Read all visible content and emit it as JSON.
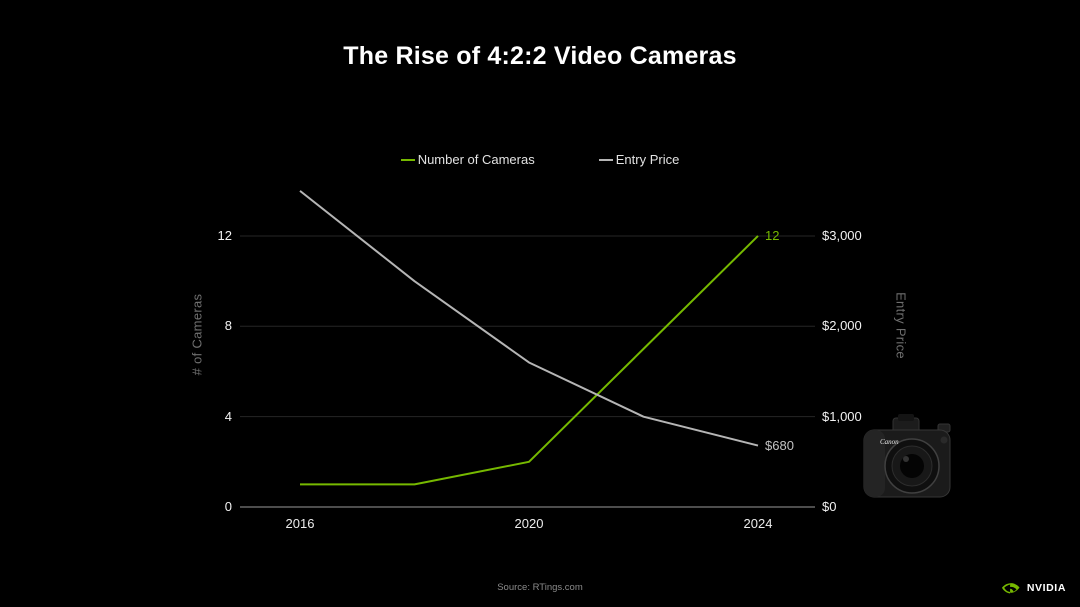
{
  "title": "The Rise of 4:2:2 Video Cameras",
  "colors": {
    "background": "#000000",
    "accent_green": "#76b900",
    "line_gray": "#b5b5b5",
    "gridline": "#262626",
    "axis_line": "#9a9a9a"
  },
  "legend": {
    "items": [
      {
        "label": "Number of Cameras",
        "color": "#76b900"
      },
      {
        "label": "Entry Price",
        "color": "#b5b5b5"
      }
    ]
  },
  "chart_data": {
    "type": "line",
    "x": [
      2016,
      2018,
      2020,
      2022,
      2024
    ],
    "series": [
      {
        "name": "Number of Cameras",
        "axis": "left",
        "color": "#76b900",
        "values": [
          1,
          1,
          2,
          7,
          12
        ]
      },
      {
        "name": "Entry Price",
        "axis": "right",
        "color": "#b5b5b5",
        "values": [
          3500,
          2500,
          1600,
          1000,
          680
        ]
      }
    ],
    "x_axis": {
      "ticks": [
        2016,
        2020,
        2024
      ],
      "tick_labels": [
        "2016",
        "2020",
        "2024"
      ],
      "range": [
        2016,
        2024
      ]
    },
    "left_axis": {
      "label": "# of Cameras",
      "ticks": [
        0,
        4,
        8,
        12
      ],
      "tick_labels": [
        "0",
        "4",
        "8",
        "12"
      ],
      "range": [
        0,
        14.92
      ]
    },
    "right_axis": {
      "label": "Entry Price",
      "ticks": [
        0,
        1000,
        2000,
        3000
      ],
      "tick_labels": [
        "$0",
        "$1,000",
        "$2,000",
        "$3,000"
      ],
      "range": [
        0,
        3731
      ]
    },
    "annotations": [
      {
        "text": "12",
        "color": "#76b900",
        "series": 0
      },
      {
        "text": "$680",
        "color": "#c2c2c2",
        "series": 1
      }
    ],
    "grid": "horizontal-only",
    "legend_position": "top-center"
  },
  "camera": {
    "brand_label": "Canon"
  },
  "footer": {
    "source": "Source: RTings.com",
    "brand": "NVIDIA"
  }
}
